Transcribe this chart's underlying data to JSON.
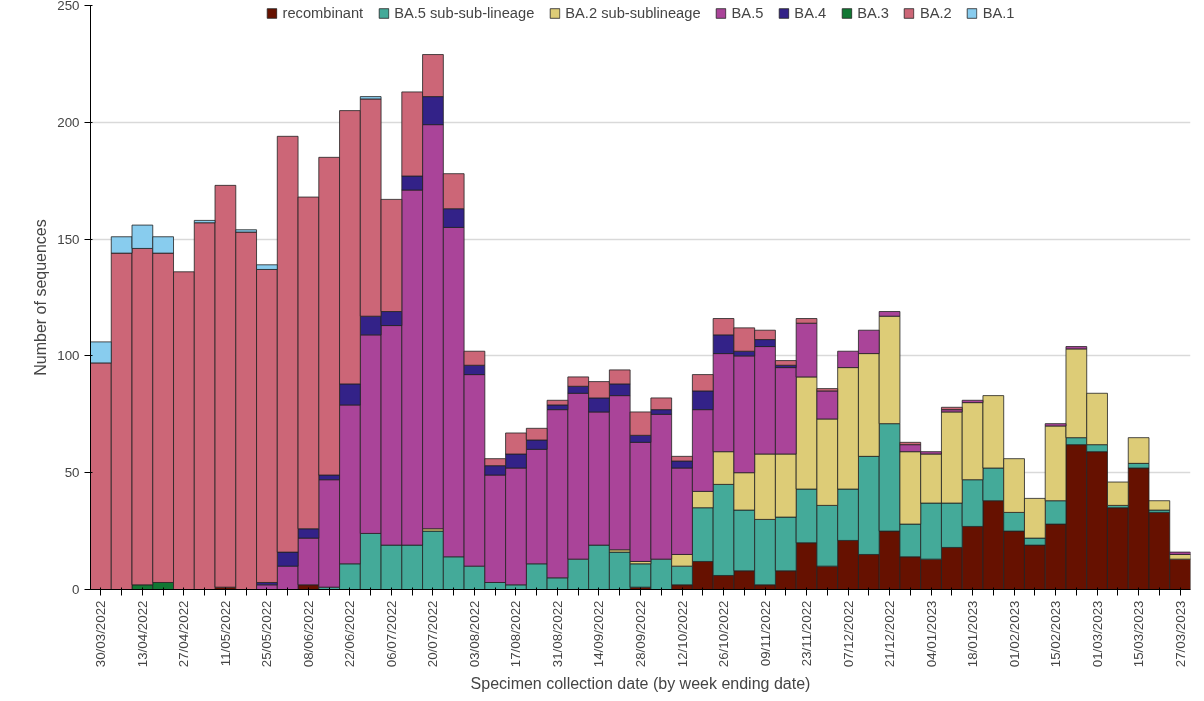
{
  "chart_data": {
    "type": "bar",
    "stacked": true,
    "xlabel": "Specimen collection date (by week ending date)",
    "ylabel": "Number of sequences",
    "categories": [
      "30/03/2022",
      null,
      "13/04/2022",
      null,
      "27/04/2022",
      null,
      "11/05/2022",
      null,
      "25/05/2022",
      null,
      "08/06/2022",
      null,
      "22/06/2022",
      null,
      "06/07/2022",
      null,
      "20/07/2022",
      null,
      "03/08/2022",
      null,
      "17/08/2022",
      null,
      "31/08/2022",
      null,
      "14/09/2022",
      null,
      "28/09/2022",
      null,
      "12/10/2022",
      null,
      "26/10/2022",
      null,
      "09/11/2022",
      null,
      "23/11/2022",
      null,
      "07/12/2022",
      null,
      "21/12/2022",
      null,
      "04/01/2023",
      null,
      "18/01/2023",
      null,
      "01/02/2023",
      null,
      "15/02/2023",
      null,
      "01/03/2023",
      null,
      "15/03/2023",
      null,
      "27/03/2023"
    ],
    "series": [
      {
        "name": "recombinant",
        "color": "#661100",
        "values": [
          0,
          0,
          0,
          0,
          0,
          0,
          1,
          0,
          0,
          0,
          2,
          0,
          0,
          0,
          0,
          0,
          0,
          0,
          0,
          0,
          0,
          0,
          0,
          0,
          0,
          0,
          1,
          0,
          2,
          12,
          6,
          8,
          2,
          8,
          20,
          10,
          21,
          15,
          25,
          14,
          13,
          18,
          27,
          38,
          25,
          19,
          28,
          62,
          59,
          35,
          52,
          33,
          13
        ]
      },
      {
        "name": "BA.5 sub-sub-lineage",
        "color": "#44aa99",
        "values": [
          0,
          0,
          0,
          0,
          0,
          0,
          0,
          0,
          0,
          0,
          0,
          1,
          11,
          24,
          19,
          19,
          25,
          14,
          10,
          3,
          2,
          11,
          5,
          13,
          19,
          16,
          10,
          13,
          8,
          23,
          39,
          26,
          28,
          23,
          23,
          26,
          22,
          42,
          46,
          14,
          24,
          19,
          20,
          14,
          8,
          3,
          10,
          3,
          3,
          1,
          2,
          1,
          0
        ]
      },
      {
        "name": "BA.2 sub-sublineage",
        "color": "#ddcc77",
        "values": [
          0,
          0,
          0,
          0,
          0,
          0,
          0,
          0,
          0,
          0,
          0,
          0,
          0,
          0,
          0,
          0,
          1,
          0,
          0,
          0,
          0,
          0,
          0,
          0,
          0,
          1,
          1,
          0,
          5,
          7,
          14,
          16,
          28,
          27,
          48,
          37,
          52,
          44,
          46,
          31,
          21,
          39,
          33,
          31,
          23,
          17,
          32,
          38,
          22,
          10,
          11,
          4,
          2
        ]
      },
      {
        "name": "BA.5",
        "color": "#aa4499",
        "values": [
          0,
          0,
          0,
          0,
          0,
          0,
          0,
          0,
          2,
          10,
          20,
          46,
          68,
          85,
          94,
          152,
          173,
          141,
          82,
          46,
          50,
          49,
          72,
          71,
          57,
          66,
          51,
          62,
          37,
          35,
          42,
          50,
          46,
          37,
          23,
          12,
          7,
          10,
          2,
          3,
          1,
          1,
          1,
          0,
          0,
          0,
          1,
          1,
          0,
          0,
          0,
          0,
          1
        ]
      },
      {
        "name": "BA.4",
        "color": "#332288",
        "values": [
          0,
          0,
          0,
          0,
          0,
          0,
          0,
          0,
          1,
          6,
          4,
          2,
          9,
          8,
          6,
          6,
          12,
          8,
          4,
          4,
          6,
          4,
          2,
          3,
          6,
          5,
          3,
          2,
          3,
          8,
          8,
          2,
          3,
          1,
          0,
          0,
          0,
          0,
          0,
          0,
          0,
          0,
          0,
          0,
          0,
          0,
          0,
          0,
          0,
          0,
          0,
          0,
          0
        ]
      },
      {
        "name": "BA.3",
        "color": "#117733",
        "values": [
          0,
          0,
          2,
          3,
          0,
          0,
          0,
          0,
          0,
          0,
          0,
          0,
          0,
          0,
          0,
          0,
          0,
          0,
          0,
          0,
          0,
          0,
          0,
          0,
          0,
          0,
          0,
          0,
          0,
          0,
          0,
          0,
          0,
          0,
          0,
          0,
          0,
          0,
          0,
          0,
          0,
          0,
          0,
          0,
          0,
          0,
          0,
          0,
          0,
          0,
          0,
          0,
          0
        ]
      },
      {
        "name": "BA.2",
        "color": "#cc6677",
        "values": [
          97,
          144,
          144,
          141,
          136,
          157,
          172,
          153,
          134,
          178,
          142,
          136,
          117,
          93,
          48,
          36,
          18,
          15,
          6,
          3,
          9,
          5,
          2,
          4,
          7,
          6,
          10,
          5,
          2,
          7,
          7,
          10,
          4,
          2,
          2,
          1,
          0,
          0,
          0,
          1,
          0,
          1,
          0,
          0,
          0,
          0,
          0,
          0,
          0,
          0,
          0,
          0,
          0
        ]
      },
      {
        "name": "BA.1",
        "color": "#88ccee",
        "values": [
          9,
          7,
          10,
          7,
          0,
          1,
          0,
          1,
          2,
          0,
          0,
          0,
          0,
          1,
          0,
          0,
          0,
          0,
          0,
          0,
          0,
          0,
          0,
          0,
          0,
          0,
          0,
          0,
          0,
          0,
          0,
          0,
          0,
          0,
          0,
          0,
          0,
          0,
          0,
          0,
          0,
          0,
          0,
          0,
          0,
          0,
          0,
          0,
          0,
          0,
          0,
          0,
          0
        ]
      }
    ],
    "ylim": [
      0,
      250
    ],
    "yticks": [
      0,
      50,
      100,
      150,
      200,
      250
    ],
    "grid": "y",
    "legend": "top"
  }
}
